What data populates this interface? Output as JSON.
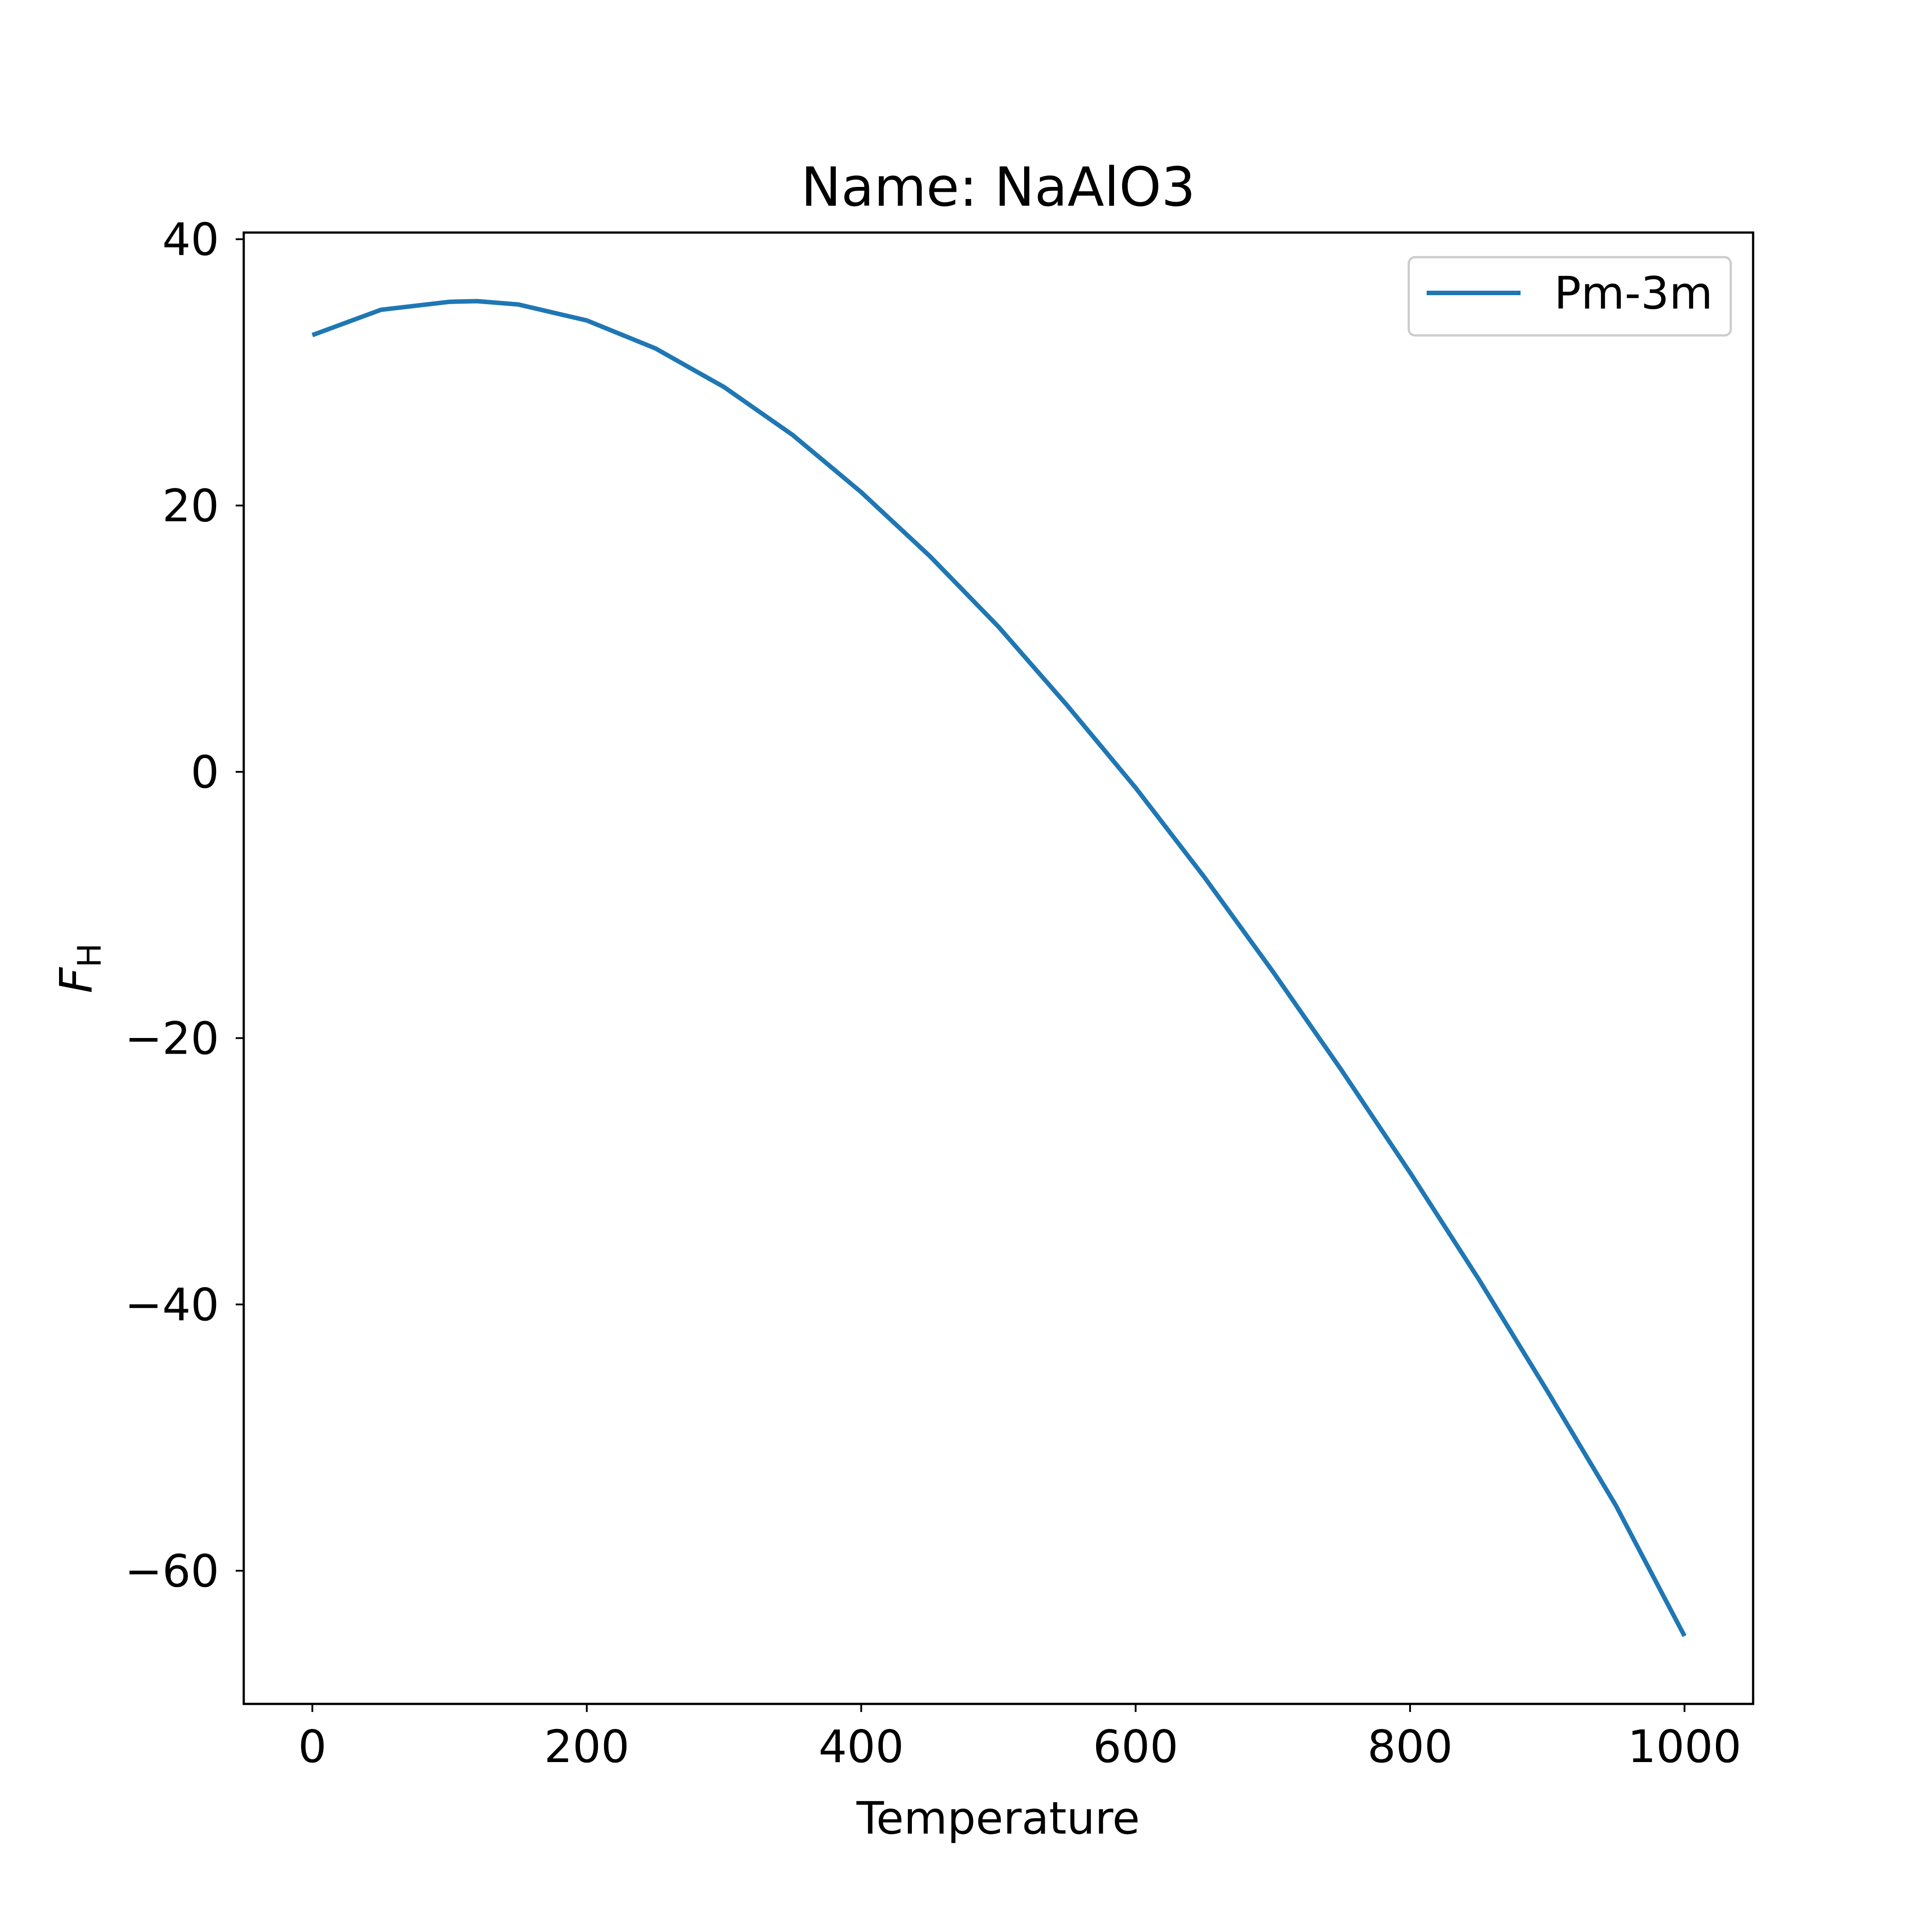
{
  "chart_data": {
    "type": "line",
    "title": "Name: NaAlO3",
    "xlabel": "Temperature",
    "ylabel": {
      "main": "F",
      "sub": "H"
    },
    "xlim": [
      -50,
      1050
    ],
    "ylim": [
      -70,
      40.5
    ],
    "xticks": [
      0,
      200,
      400,
      600,
      800,
      1000
    ],
    "yticks": [
      40,
      20,
      0,
      -20,
      -40,
      -60
    ],
    "xtick_labels": [
      "0",
      "200",
      "400",
      "600",
      "800",
      "1000"
    ],
    "ytick_labels": [
      "40",
      "20",
      "0",
      "−20",
      "−40",
      "−60"
    ],
    "grid": false,
    "legend_position": "top-right",
    "series": [
      {
        "name": "Pm-3m",
        "color": "#1f77b4",
        "x": [
          0,
          50,
          100,
          120,
          150,
          200,
          250,
          300,
          350,
          400,
          450,
          500,
          550,
          600,
          650,
          700,
          750,
          800,
          850,
          900,
          950,
          1000
        ],
        "y": [
          32.8,
          34.7,
          35.3,
          35.35,
          35.1,
          33.9,
          31.8,
          28.9,
          25.3,
          21.0,
          16.2,
          10.9,
          5.0,
          -1.2,
          -7.9,
          -15.0,
          -22.4,
          -30.1,
          -38.1,
          -46.5,
          -55.1,
          -64.9
        ]
      }
    ]
  }
}
